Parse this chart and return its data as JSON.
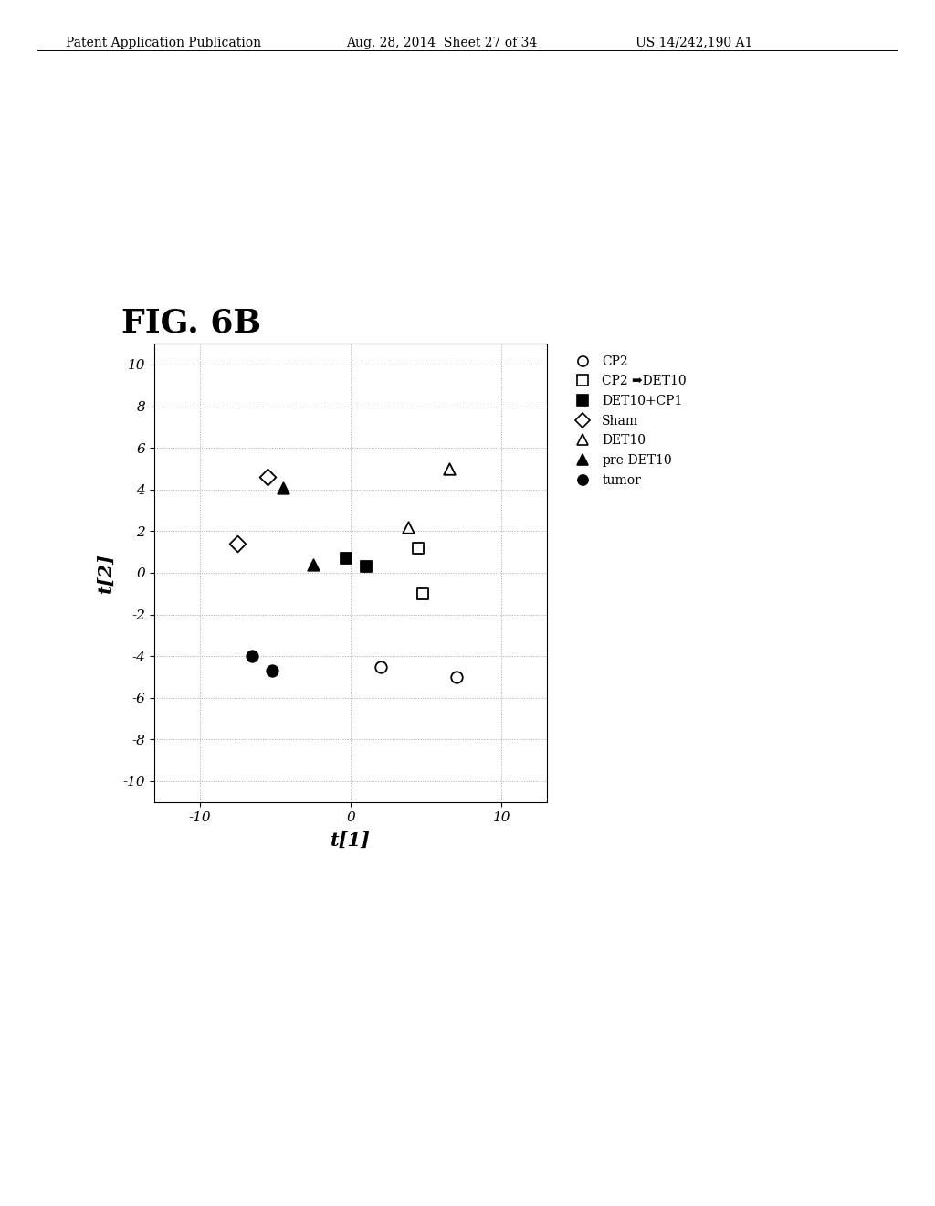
{
  "fig_label": "FIG. 6B",
  "header_left": "Patent Application Publication",
  "header_mid": "Aug. 28, 2014  Sheet 27 of 34",
  "header_right": "US 14/242,190 A1",
  "xlabel": "t[1]",
  "ylabel": "t[2]",
  "xlim": [
    -13,
    13
  ],
  "ylim": [
    -11,
    11
  ],
  "xticks": [
    -10,
    0,
    10
  ],
  "yticks": [
    -10,
    -8,
    -6,
    -4,
    -2,
    0,
    2,
    4,
    6,
    8,
    10
  ],
  "series": [
    {
      "label": "CP2",
      "marker": "o",
      "facecolor": "white",
      "edgecolor": "black",
      "points": [
        [
          2.0,
          -4.5
        ],
        [
          7.0,
          -5.0
        ]
      ]
    },
    {
      "label": "CP2 ➡ DET10",
      "marker": "s",
      "facecolor": "white",
      "edgecolor": "black",
      "points": [
        [
          4.5,
          1.2
        ],
        [
          4.8,
          -1.0
        ]
      ]
    },
    {
      "label": "DET10+CP1",
      "marker": "s",
      "facecolor": "black",
      "edgecolor": "black",
      "points": [
        [
          -0.3,
          0.7
        ],
        [
          1.0,
          0.3
        ]
      ]
    },
    {
      "label": "Sham",
      "marker": "D",
      "facecolor": "white",
      "edgecolor": "black",
      "points": [
        [
          -5.5,
          4.6
        ],
        [
          -7.5,
          1.4
        ]
      ]
    },
    {
      "label": "DET10",
      "marker": "^",
      "facecolor": "white",
      "edgecolor": "black",
      "points": [
        [
          6.5,
          5.0
        ],
        [
          3.8,
          2.2
        ]
      ]
    },
    {
      "label": "pre-DET10",
      "marker": "^",
      "facecolor": "black",
      "edgecolor": "black",
      "points": [
        [
          -2.5,
          0.4
        ],
        [
          -4.5,
          4.1
        ]
      ]
    },
    {
      "label": "tumor",
      "marker": "o",
      "facecolor": "black",
      "edgecolor": "black",
      "points": [
        [
          -6.5,
          -4.0
        ],
        [
          -5.2,
          -4.7
        ]
      ]
    }
  ],
  "background_color": "#ffffff",
  "grid_color": "#aaaaaa",
  "marker_size": 9,
  "fig_label_fontsize": 26,
  "axis_label_fontsize": 15,
  "tick_fontsize": 11,
  "header_fontsize": 10,
  "legend_fontsize": 10
}
